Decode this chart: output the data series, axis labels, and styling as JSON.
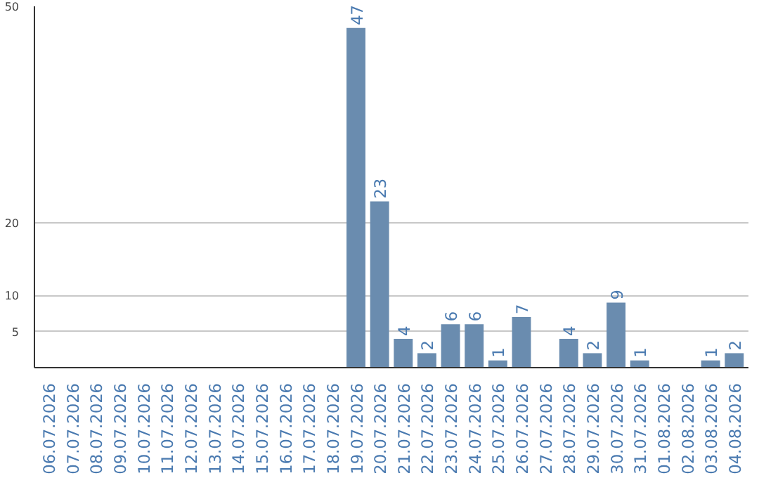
{
  "chart_data": {
    "type": "bar",
    "categories": [
      "06.07.2026",
      "07.07.2026",
      "08.07.2026",
      "09.07.2026",
      "10.07.2026",
      "11.07.2026",
      "12.07.2026",
      "13.07.2026",
      "14.07.2026",
      "15.07.2026",
      "16.07.2026",
      "17.07.2026",
      "18.07.2026",
      "19.07.2026",
      "20.07.2026",
      "21.07.2026",
      "22.07.2026",
      "23.07.2026",
      "24.07.2026",
      "25.07.2026",
      "26.07.2026",
      "27.07.2026",
      "28.07.2026",
      "29.07.2026",
      "30.07.2026",
      "31.07.2026",
      "01.08.2026",
      "02.08.2026",
      "03.08.2026",
      "04.08.2026"
    ],
    "values": [
      0,
      0,
      0,
      0,
      0,
      0,
      0,
      0,
      0,
      0,
      0,
      0,
      0,
      47,
      23,
      4,
      2,
      6,
      6,
      1,
      7,
      0,
      4,
      2,
      9,
      1,
      0,
      0,
      1,
      2
    ],
    "value_labels": [
      null,
      null,
      null,
      null,
      null,
      null,
      null,
      null,
      null,
      null,
      null,
      null,
      null,
      "47",
      "23",
      "4",
      "2",
      "6",
      "6",
      "1",
      "7",
      null,
      "4",
      "2",
      "9",
      "1",
      null,
      null,
      "1",
      "2"
    ],
    "color": "#6a8caf",
    "ylim": [
      0,
      50
    ],
    "yticks": [
      5,
      10,
      20,
      50
    ],
    "grid": "y"
  }
}
